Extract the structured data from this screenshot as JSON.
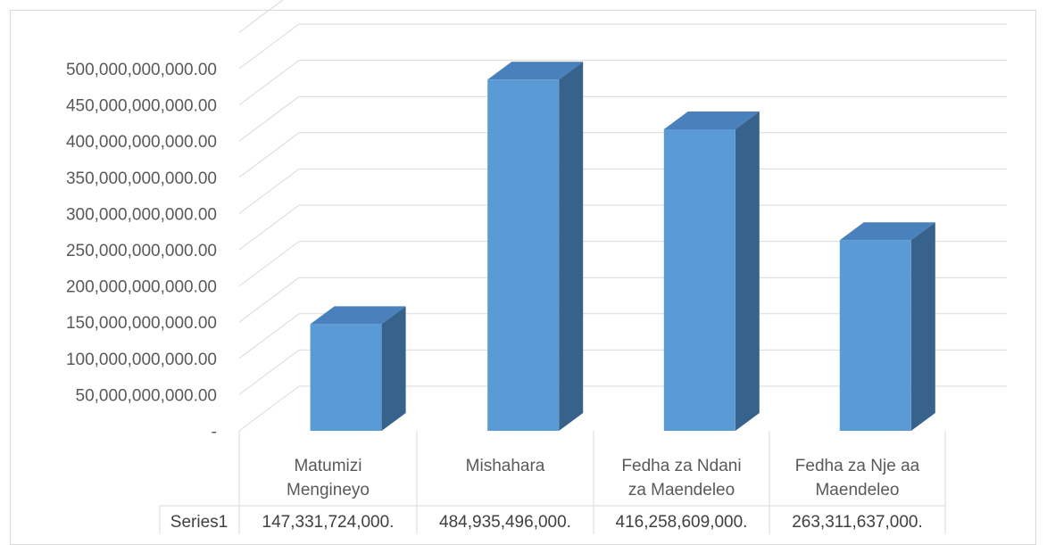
{
  "chart_data": {
    "type": "bar",
    "style": "3d-clustered-column",
    "categories": [
      [
        "Matumizi",
        "Mengineyo"
      ],
      [
        "Mishahara"
      ],
      [
        "Fedha za Ndani",
        "za Maendeleo"
      ],
      [
        "Fedha za Nje aa",
        "Maendeleo"
      ]
    ],
    "series": [
      {
        "name": "Series1",
        "values": [
          147331724000,
          484935496000,
          416258609000,
          263311637000
        ],
        "table_labels": [
          "147,331,724,000.",
          "484,935,496,000.",
          "416,258,609,000.",
          "263,311,637,000."
        ]
      }
    ],
    "y_ticks": [
      "-",
      "50,000,000,000.00",
      "100,000,000,000.00",
      "150,000,000,000.00",
      "200,000,000,000.00",
      "250,000,000,000.00",
      "300,000,000,000.00",
      "350,000,000,000.00",
      "400,000,000,000.00",
      "450,000,000,000.00",
      "500,000,000,000.00"
    ],
    "ylim": [
      0,
      550000000000
    ],
    "tick_step": 50000000000,
    "grid": true,
    "data_table": true,
    "colors": {
      "front": "#5b9bd5",
      "top": "#4a81bd",
      "side": "#37628c",
      "grid": "#d9d9d9",
      "text": "#595959"
    }
  }
}
